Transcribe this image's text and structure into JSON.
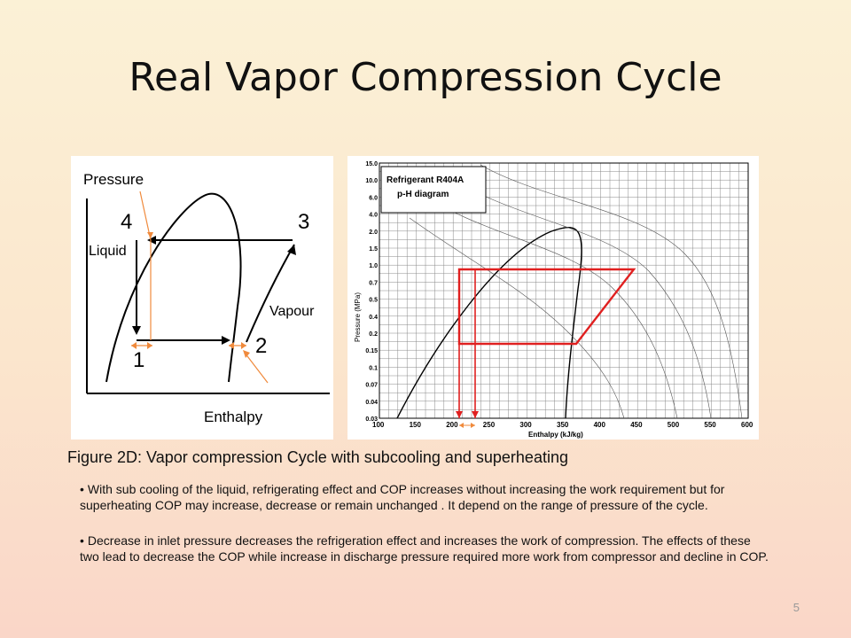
{
  "slide": {
    "title": "Real Vapor Compression Cycle",
    "page_number": "5"
  },
  "left_diagram": {
    "y_axis_label": "Pressure",
    "x_axis_label": "Enthalpy",
    "point_labels": [
      "1",
      "2",
      "3",
      "4"
    ],
    "region_liquid": "Liquid",
    "region_vapour": "Vapour"
  },
  "right_diagram": {
    "title_line1": "Refrigerant R404A",
    "title_line2": "p-H diagram",
    "y_axis_label": "Pressure (MPa)",
    "x_axis_label": "Enthalpy (kJ/kg)",
    "y_ticks": [
      "15.0",
      "10.0",
      "6.0",
      "4.0",
      "2.0",
      "1.5",
      "1.0",
      "0.7",
      "0.5",
      "0.4",
      "0.2",
      "0.15",
      "0.1",
      "0.07",
      "0.04",
      "0.03"
    ],
    "x_ticks": [
      "100",
      "150",
      "200",
      "250",
      "300",
      "350",
      "400",
      "450",
      "500",
      "550",
      "600"
    ]
  },
  "caption": "Figure 2D: Vapor compression Cycle with subcooling and superheating",
  "bullets": [
    "With sub cooling of the liquid, refrigerating effect and COP increases without increasing the work requirement but for superheating COP may increase, decrease or remain unchanged . It depend on the range of pressure of the cycle.",
    "Decrease in inlet pressure decreases the refrigeration effect and increases the work of compression. The effects of these two lead to decrease the COP while increase in discharge pressure required more work from compressor and decline in COP."
  ],
  "colors": {
    "annotation_orange": "#f08a3c",
    "cycle_red": "#e02020"
  }
}
